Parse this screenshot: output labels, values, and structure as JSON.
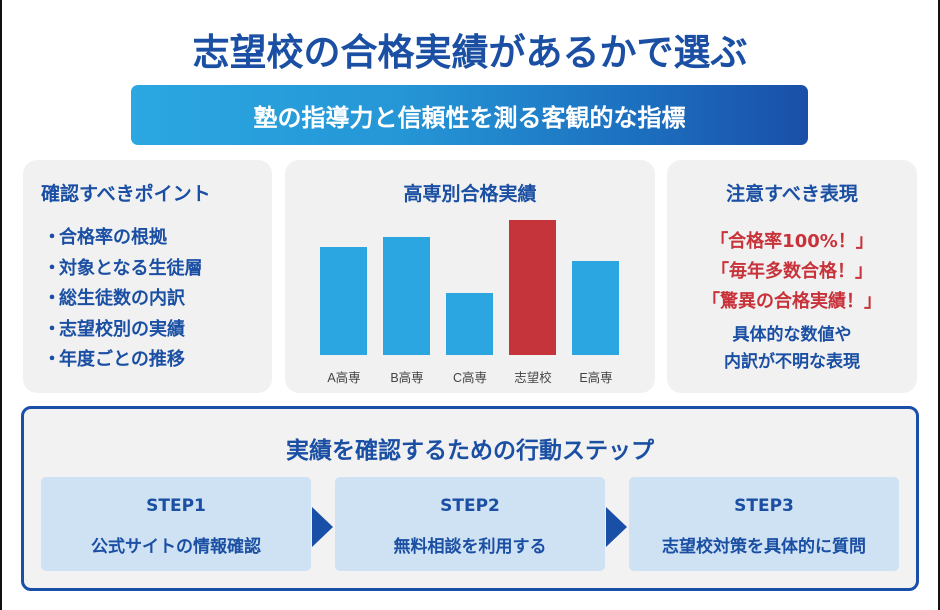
{
  "header": {
    "title": "志望校の合格実績があるかで選ぶ",
    "subtitle": "塾の指導力と信頼性を測る客観的な指標"
  },
  "check_points": {
    "title": "確認すべきポイント",
    "bullet": "・",
    "items": [
      "合格率の根拠",
      "対象となる生徒層",
      "総生徒数の内訳",
      "志望校別の実績",
      "年度ごとの推移"
    ]
  },
  "chart_data": {
    "type": "bar",
    "title": "高専別合格実績",
    "categories": [
      "A高専",
      "B高専",
      "C高専",
      "志望校",
      "E高専"
    ],
    "values": [
      108,
      118,
      62,
      135,
      94
    ],
    "colors": [
      "#2ba6e0",
      "#2ba6e0",
      "#2ba6e0",
      "#c4343a",
      "#2ba6e0"
    ],
    "highlight": "志望校",
    "xlabel": "",
    "ylabel": "",
    "grid": false,
    "legend": "none",
    "note": "No axis values shown; values are relative bar heights in pixels"
  },
  "warning": {
    "title": "注意すべき表現",
    "phrases": [
      "「合格率100%！」",
      "「毎年多数合格！」",
      "「驚異の合格実績！」"
    ],
    "note_lines": [
      "具体的な数値や",
      "内訳が不明な表現"
    ]
  },
  "steps": {
    "title": "実績を確認するための行動ステップ",
    "items": [
      {
        "label": "STEP1",
        "text": "公式サイトの情報確認"
      },
      {
        "label": "STEP2",
        "text": "無料相談を利用する"
      },
      {
        "label": "STEP3",
        "text": "志望校対策を具体的に質問"
      }
    ]
  },
  "colors": {
    "brand_blue": "#1a4fa3",
    "accent_sky": "#2ba6e0",
    "warning_red": "#c8323a",
    "card_bg": "#f1f1f1",
    "step_bg": "#cfe2f3"
  }
}
